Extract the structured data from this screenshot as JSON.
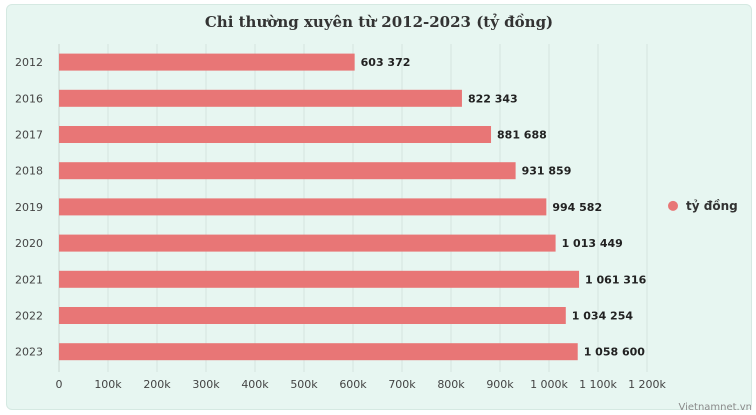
{
  "chart_data": {
    "type": "bar",
    "orientation": "horizontal",
    "title": "Chi thường xuyên từ 2012-2023 (tỷ đồng)",
    "categories": [
      "2012",
      "2016",
      "2017",
      "2018",
      "2019",
      "2020",
      "2021",
      "2022",
      "2023"
    ],
    "series": [
      {
        "name": "tỷ đồng",
        "color": "#e87676",
        "values": [
          603372,
          822343,
          881688,
          931859,
          994582,
          1013449,
          1061316,
          1034254,
          1058600
        ],
        "labels": [
          "603 372",
          "822 343",
          "881 688",
          "931 859",
          "994 582",
          "1 013 449",
          "1 061 316",
          "1 034 254",
          "1 058 600"
        ]
      }
    ],
    "xlim": [
      0,
      1200000
    ],
    "x_ticks": [
      0,
      100000,
      200000,
      300000,
      400000,
      500000,
      600000,
      700000,
      800000,
      900000,
      1000000,
      1100000,
      1200000
    ],
    "x_tick_labels": [
      "0",
      "100k",
      "200k",
      "300k",
      "400k",
      "500k",
      "600k",
      "700k",
      "800k",
      "900k",
      "1 000k",
      "1 100k",
      "1 200k"
    ],
    "grid": true,
    "legend_position": "right"
  },
  "credit": "Vietnamnet.vn",
  "colors": {
    "background": "#e7f6f1",
    "bar": "#e87676",
    "grid": "#d6e4df"
  }
}
